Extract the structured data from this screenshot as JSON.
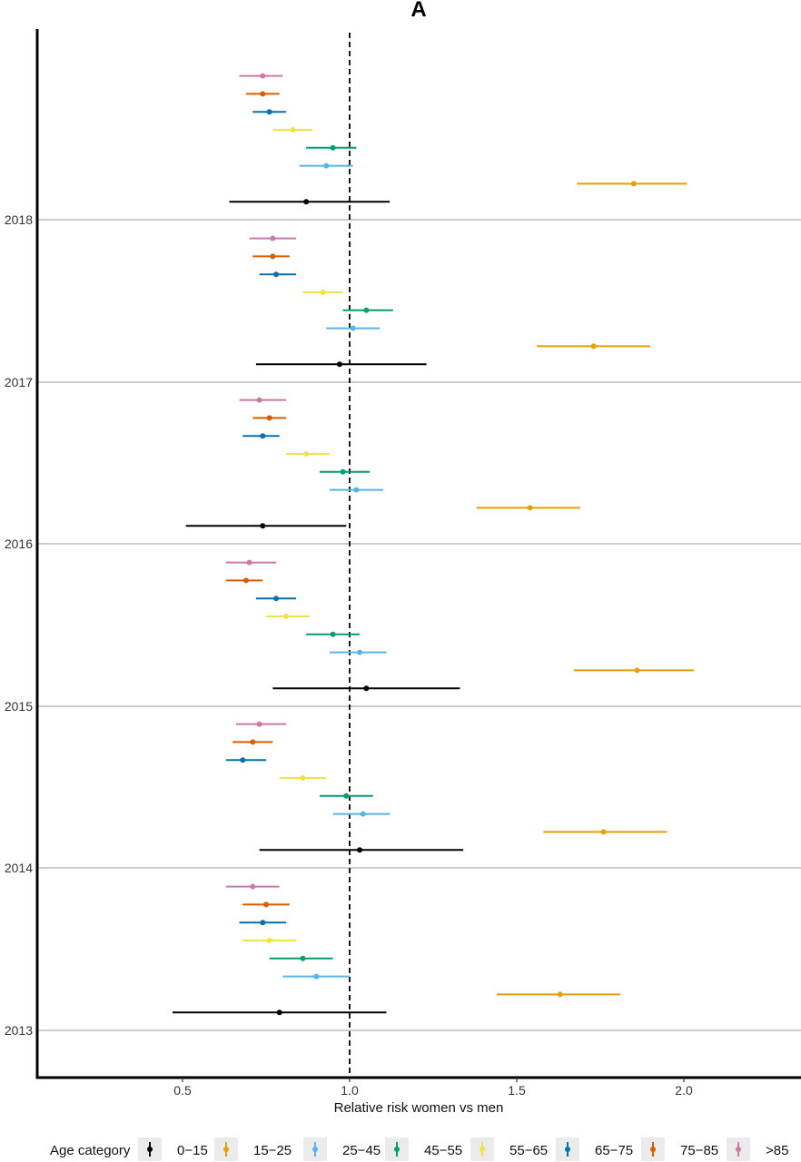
{
  "chart_data": {
    "type": "forest",
    "title": "A",
    "xlabel": "Relative risk women vs men",
    "ylabel": "",
    "xlim": [
      0.07,
      2.37
    ],
    "x_ticks": [
      "0.5",
      "1.0",
      "1.5",
      "2.0"
    ],
    "reference_line": 1.0,
    "grid": "horizontal lines at year ticks",
    "legend_position": "bottom",
    "legend_title": "Age category",
    "years": [
      "2013",
      "2014",
      "2015",
      "2016",
      "2017",
      "2018"
    ],
    "series": [
      {
        "name": "0−15",
        "color": "#000000",
        "points": [
          {
            "year": "2013",
            "estimate": 0.79,
            "lower": 0.47,
            "upper": 1.11
          },
          {
            "year": "2014",
            "estimate": 1.03,
            "lower": 0.73,
            "upper": 1.34
          },
          {
            "year": "2015",
            "estimate": 1.05,
            "lower": 0.77,
            "upper": 1.33
          },
          {
            "year": "2016",
            "estimate": 0.74,
            "lower": 0.51,
            "upper": 0.99
          },
          {
            "year": "2017",
            "estimate": 0.97,
            "lower": 0.72,
            "upper": 1.23
          },
          {
            "year": "2018",
            "estimate": 0.87,
            "lower": 0.64,
            "upper": 1.12
          }
        ]
      },
      {
        "name": "15−25",
        "color": "#E69F00",
        "points": [
          {
            "year": "2013",
            "estimate": 1.63,
            "lower": 1.44,
            "upper": 1.81
          },
          {
            "year": "2014",
            "estimate": 1.76,
            "lower": 1.58,
            "upper": 1.95
          },
          {
            "year": "2015",
            "estimate": 1.86,
            "lower": 1.67,
            "upper": 2.03
          },
          {
            "year": "2016",
            "estimate": 1.54,
            "lower": 1.38,
            "upper": 1.69
          },
          {
            "year": "2017",
            "estimate": 1.73,
            "lower": 1.56,
            "upper": 1.9
          },
          {
            "year": "2018",
            "estimate": 1.85,
            "lower": 1.68,
            "upper": 2.01
          }
        ]
      },
      {
        "name": "25−45",
        "color": "#56B4E9",
        "points": [
          {
            "year": "2013",
            "estimate": 0.9,
            "lower": 0.8,
            "upper": 1.0
          },
          {
            "year": "2014",
            "estimate": 1.04,
            "lower": 0.95,
            "upper": 1.12
          },
          {
            "year": "2015",
            "estimate": 1.03,
            "lower": 0.94,
            "upper": 1.11
          },
          {
            "year": "2016",
            "estimate": 1.02,
            "lower": 0.94,
            "upper": 1.1
          },
          {
            "year": "2017",
            "estimate": 1.01,
            "lower": 0.93,
            "upper": 1.09
          },
          {
            "year": "2018",
            "estimate": 0.93,
            "lower": 0.85,
            "upper": 1.01
          }
        ]
      },
      {
        "name": "45−55",
        "color": "#009E73",
        "points": [
          {
            "year": "2013",
            "estimate": 0.86,
            "lower": 0.76,
            "upper": 0.95
          },
          {
            "year": "2014",
            "estimate": 0.99,
            "lower": 0.91,
            "upper": 1.07
          },
          {
            "year": "2015",
            "estimate": 0.95,
            "lower": 0.87,
            "upper": 1.03
          },
          {
            "year": "2016",
            "estimate": 0.98,
            "lower": 0.91,
            "upper": 1.06
          },
          {
            "year": "2017",
            "estimate": 1.05,
            "lower": 0.98,
            "upper": 1.13
          },
          {
            "year": "2018",
            "estimate": 0.95,
            "lower": 0.87,
            "upper": 1.02
          }
        ]
      },
      {
        "name": "55−65",
        "color": "#F0E442",
        "points": [
          {
            "year": "2013",
            "estimate": 0.76,
            "lower": 0.68,
            "upper": 0.84
          },
          {
            "year": "2014",
            "estimate": 0.86,
            "lower": 0.79,
            "upper": 0.93
          },
          {
            "year": "2015",
            "estimate": 0.81,
            "lower": 0.75,
            "upper": 0.88
          },
          {
            "year": "2016",
            "estimate": 0.87,
            "lower": 0.81,
            "upper": 0.94
          },
          {
            "year": "2017",
            "estimate": 0.92,
            "lower": 0.86,
            "upper": 0.98
          },
          {
            "year": "2018",
            "estimate": 0.83,
            "lower": 0.77,
            "upper": 0.89
          }
        ]
      },
      {
        "name": "65−75",
        "color": "#0072B2",
        "points": [
          {
            "year": "2013",
            "estimate": 0.74,
            "lower": 0.67,
            "upper": 0.81
          },
          {
            "year": "2014",
            "estimate": 0.68,
            "lower": 0.63,
            "upper": 0.75
          },
          {
            "year": "2015",
            "estimate": 0.78,
            "lower": 0.72,
            "upper": 0.84
          },
          {
            "year": "2016",
            "estimate": 0.74,
            "lower": 0.68,
            "upper": 0.79
          },
          {
            "year": "2017",
            "estimate": 0.78,
            "lower": 0.73,
            "upper": 0.84
          },
          {
            "year": "2018",
            "estimate": 0.76,
            "lower": 0.71,
            "upper": 0.81
          }
        ]
      },
      {
        "name": "75−85",
        "color": "#D55E00",
        "points": [
          {
            "year": "2013",
            "estimate": 0.75,
            "lower": 0.68,
            "upper": 0.82
          },
          {
            "year": "2014",
            "estimate": 0.71,
            "lower": 0.65,
            "upper": 0.77
          },
          {
            "year": "2015",
            "estimate": 0.69,
            "lower": 0.63,
            "upper": 0.74
          },
          {
            "year": "2016",
            "estimate": 0.76,
            "lower": 0.71,
            "upper": 0.81
          },
          {
            "year": "2017",
            "estimate": 0.77,
            "lower": 0.71,
            "upper": 0.82
          },
          {
            "year": "2018",
            "estimate": 0.74,
            "lower": 0.69,
            "upper": 0.79
          }
        ]
      },
      {
        "name": ">85",
        "color": "#CC79A7",
        "points": [
          {
            "year": "2013",
            "estimate": 0.71,
            "lower": 0.63,
            "upper": 0.79
          },
          {
            "year": "2014",
            "estimate": 0.73,
            "lower": 0.66,
            "upper": 0.81
          },
          {
            "year": "2015",
            "estimate": 0.7,
            "lower": 0.63,
            "upper": 0.78
          },
          {
            "year": "2016",
            "estimate": 0.73,
            "lower": 0.67,
            "upper": 0.81
          },
          {
            "year": "2017",
            "estimate": 0.77,
            "lower": 0.7,
            "upper": 0.84
          },
          {
            "year": "2018",
            "estimate": 0.74,
            "lower": 0.67,
            "upper": 0.8
          }
        ]
      }
    ]
  }
}
